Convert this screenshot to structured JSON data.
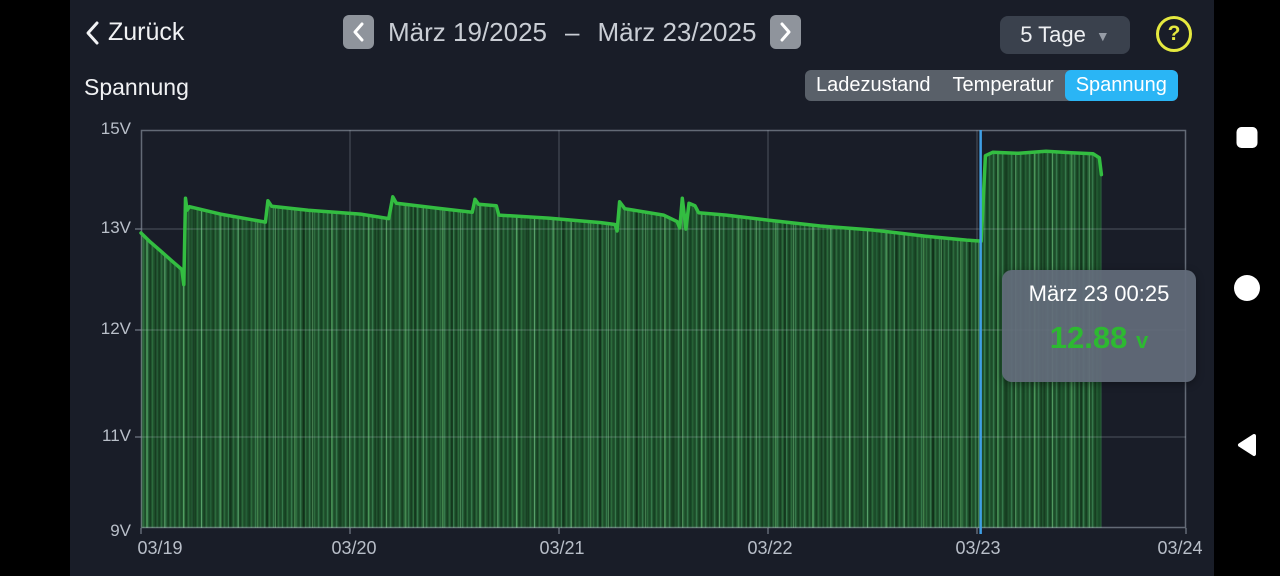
{
  "header": {
    "back_label": "Zurück",
    "date_start": "März 19/2025",
    "date_separator": "–",
    "date_end": "März 23/2025",
    "range_label": "5 Tage",
    "help_label": "?"
  },
  "chart_header": {
    "title": "Spannung",
    "tabs": [
      {
        "label": "Ladezustand",
        "active": false
      },
      {
        "label": "Temperatur",
        "active": false
      },
      {
        "label": "Spannung",
        "active": true
      }
    ]
  },
  "tooltip": {
    "date": "März 23 00:25",
    "value": "12.88",
    "unit": "v"
  },
  "colors": {
    "accent_blue": "#2ab5f5",
    "chart_green": "#33bd41",
    "value_green": "#2db931",
    "help_yellow": "#e5e93f",
    "cursor_blue": "#3f9fe6"
  },
  "chart_data": {
    "type": "area",
    "title": "Spannung",
    "ylabel": "V",
    "grid": true,
    "x_span_days": 5,
    "y_ticks": [
      {
        "label": "15V",
        "value": 15
      },
      {
        "label": "13V",
        "value": 13
      },
      {
        "label": "12V",
        "value": 12
      },
      {
        "label": "11V",
        "value": 11
      },
      {
        "label": "9V",
        "value": 9
      }
    ],
    "x_ticks": [
      {
        "label": "03/19"
      },
      {
        "label": "03/20"
      },
      {
        "label": "03/21"
      },
      {
        "label": "03/22"
      },
      {
        "label": "03/23"
      },
      {
        "label": "03/24"
      }
    ],
    "cursor": {
      "t_days": 4.0174,
      "datetime": "März 23 00:25",
      "voltage": 12.88
    },
    "series": [
      {
        "name": "Spannung",
        "unit": "V",
        "points": [
          [
            0.0,
            12.96
          ],
          [
            0.045,
            12.87
          ],
          [
            0.095,
            12.78
          ],
          [
            0.15,
            12.68
          ],
          [
            0.195,
            12.6
          ],
          [
            0.205,
            12.45
          ],
          [
            0.213,
            13.62
          ],
          [
            0.22,
            13.38
          ],
          [
            0.232,
            13.45
          ],
          [
            0.38,
            13.3
          ],
          [
            0.595,
            13.14
          ],
          [
            0.607,
            13.57
          ],
          [
            0.625,
            13.46
          ],
          [
            0.8,
            13.38
          ],
          [
            1.05,
            13.3
          ],
          [
            1.185,
            13.21
          ],
          [
            1.205,
            13.65
          ],
          [
            1.222,
            13.52
          ],
          [
            1.4,
            13.43
          ],
          [
            1.585,
            13.34
          ],
          [
            1.598,
            13.6
          ],
          [
            1.615,
            13.5
          ],
          [
            1.7,
            13.47
          ],
          [
            1.712,
            13.28
          ],
          [
            1.95,
            13.22
          ],
          [
            2.2,
            13.13
          ],
          [
            2.268,
            13.09
          ],
          [
            2.278,
            12.98
          ],
          [
            2.29,
            13.55
          ],
          [
            2.315,
            13.41
          ],
          [
            2.5,
            13.28
          ],
          [
            2.565,
            13.15
          ],
          [
            2.578,
            13.02
          ],
          [
            2.59,
            13.62
          ],
          [
            2.607,
            13.0
          ],
          [
            2.622,
            13.52
          ],
          [
            2.65,
            13.47
          ],
          [
            2.668,
            13.33
          ],
          [
            2.8,
            13.28
          ],
          [
            3.0,
            13.18
          ],
          [
            3.25,
            13.06
          ],
          [
            3.5,
            12.99
          ],
          [
            3.75,
            12.93
          ],
          [
            3.95,
            12.89
          ],
          [
            4.02,
            12.88
          ],
          [
            4.04,
            14.48
          ],
          [
            4.075,
            14.55
          ],
          [
            4.2,
            14.53
          ],
          [
            4.33,
            14.57
          ],
          [
            4.45,
            14.54
          ],
          [
            4.555,
            14.52
          ],
          [
            4.585,
            14.44
          ],
          [
            4.595,
            14.1
          ]
        ]
      }
    ]
  }
}
